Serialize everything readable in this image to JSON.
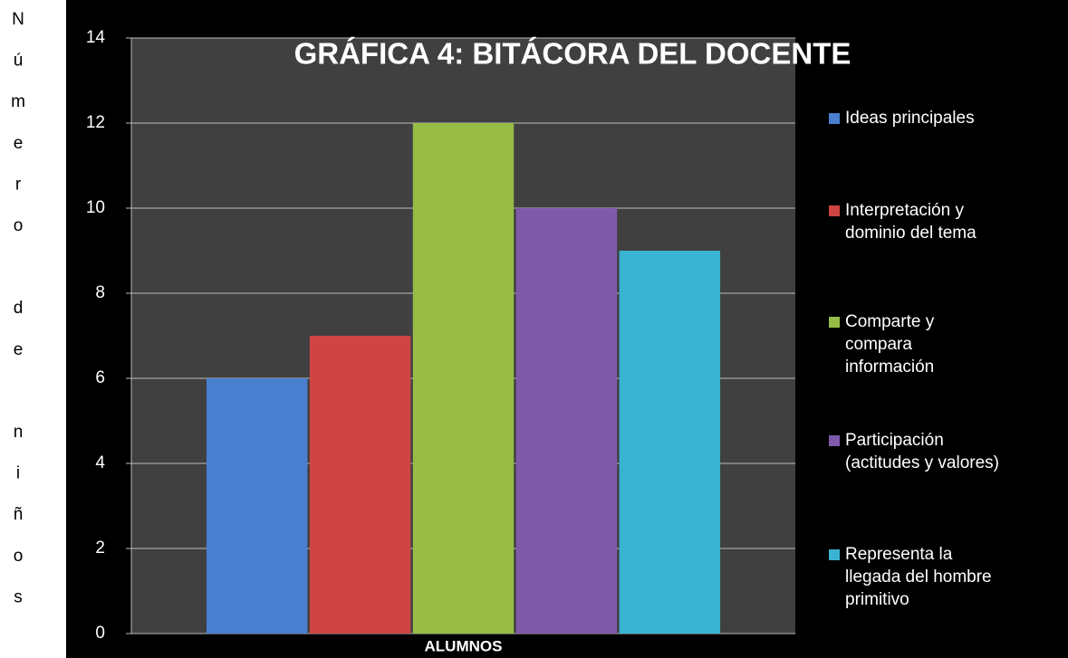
{
  "chart_data": {
    "type": "bar",
    "title": "GRÁFICA 4: BITÁCORA DEL DOCENTE",
    "y_label": "Número de niños",
    "categories": [
      "ALUMNOS"
    ],
    "series": [
      {
        "name": "Ideas principales",
        "color": "#4a7fd0",
        "values": [
          6
        ]
      },
      {
        "name": "Interpretación y dominio del tema",
        "color": "#d04444",
        "values": [
          7
        ]
      },
      {
        "name": "Comparte y compara información",
        "color": "#98bb45",
        "values": [
          12
        ]
      },
      {
        "name": "Participación (actitudes y valores)",
        "color": "#7f5aab",
        "values": [
          10
        ]
      },
      {
        "name": "Representa la llegada del hombre primitivo",
        "color": "#3ab3d3",
        "values": [
          9
        ]
      }
    ],
    "ylim": [
      0,
      14
    ],
    "yticks": [
      0,
      2,
      4,
      6,
      8,
      10,
      12,
      14
    ],
    "grid": true,
    "legend": "right"
  }
}
